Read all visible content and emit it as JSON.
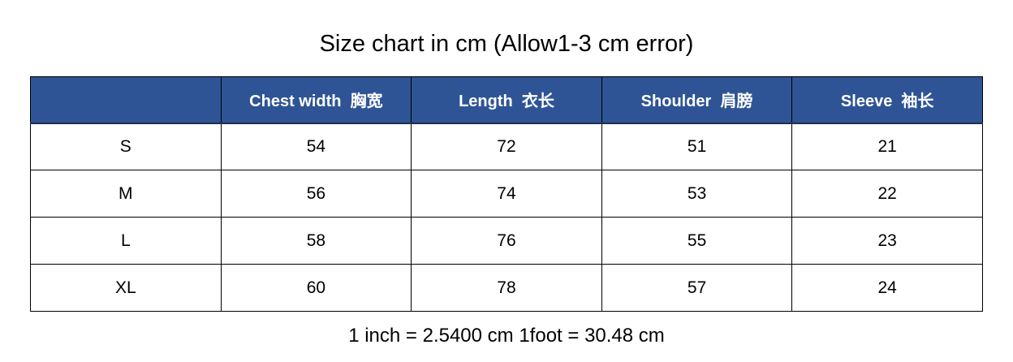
{
  "colors": {
    "header_bg": "#2E5495",
    "header_text": "#FFFFFF",
    "grid": "#000000"
  },
  "chart_data": {
    "type": "table",
    "title": "Size chart in cm (Allow1-3 cm error)",
    "columns": [
      "",
      "Chest width  胸宽",
      "Length  衣长",
      "Shoulder  肩膀",
      "Sleeve  袖长"
    ],
    "rows": [
      [
        "S",
        54,
        72,
        51,
        21
      ],
      [
        "M",
        56,
        74,
        53,
        22
      ],
      [
        "L",
        58,
        76,
        55,
        23
      ],
      [
        "XL",
        60,
        78,
        57,
        24
      ]
    ],
    "footnote": "1 inch = 2.5400 cm 1foot = 30.48 cm",
    "layout": {
      "grid": "on",
      "header_fill": "#2E5495",
      "units": "cm"
    }
  }
}
